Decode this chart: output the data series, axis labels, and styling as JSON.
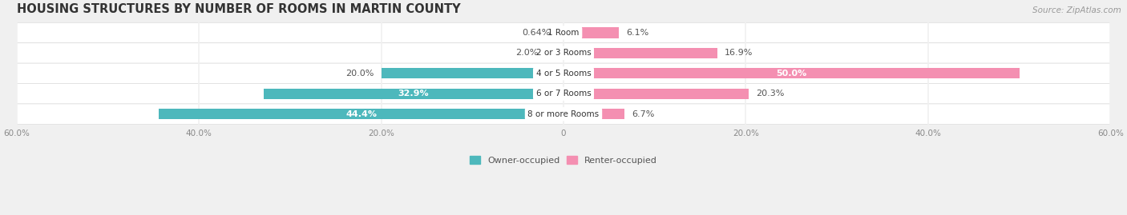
{
  "title": "HOUSING STRUCTURES BY NUMBER OF ROOMS IN MARTIN COUNTY",
  "source": "Source: ZipAtlas.com",
  "categories": [
    "1 Room",
    "2 or 3 Rooms",
    "4 or 5 Rooms",
    "6 or 7 Rooms",
    "8 or more Rooms"
  ],
  "owner_values": [
    0.64,
    2.0,
    20.0,
    32.9,
    44.4
  ],
  "renter_values": [
    6.1,
    16.9,
    50.0,
    20.3,
    6.7
  ],
  "owner_color": "#4db8bc",
  "renter_color": "#f48fb1",
  "owner_label": "Owner-occupied",
  "renter_label": "Renter-occupied",
  "xlim": [
    -60,
    60
  ],
  "bg_color": "#f0f0f0",
  "row_bg_color": "#ffffff",
  "title_fontsize": 10.5,
  "source_fontsize": 7.5,
  "bar_height": 0.52,
  "label_fontsize": 8,
  "cat_fontsize": 7.5,
  "inside_label_threshold_owner": 30,
  "inside_label_threshold_renter": 35
}
